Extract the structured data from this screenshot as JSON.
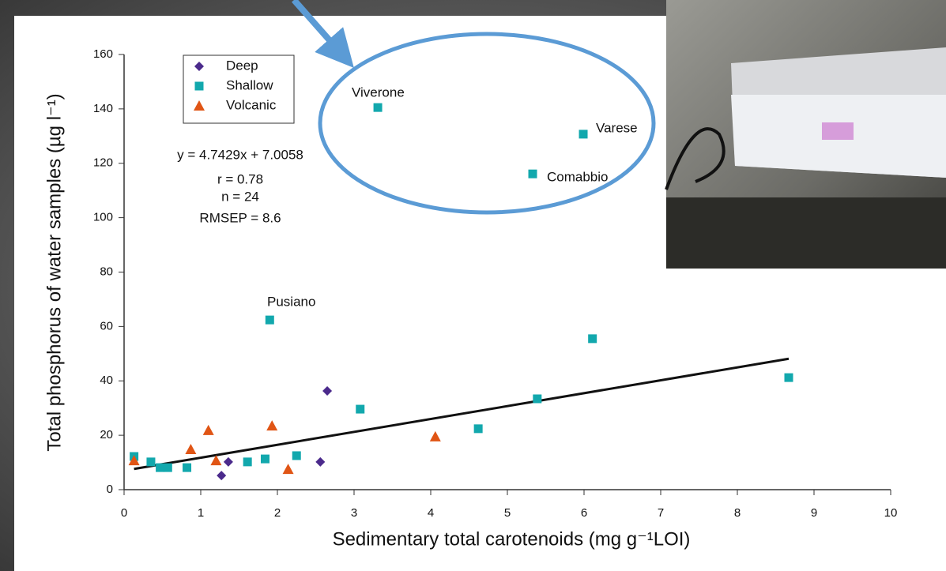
{
  "chart_data": {
    "type": "scatter",
    "x_label": "Sedimentary total carotenoids (mg g⁻¹LOI)",
    "y_label": "Total phosphorus of water samples (µg l⁻¹)",
    "xlim": [
      0,
      10
    ],
    "xticks": [
      0,
      1,
      2,
      3,
      4,
      5,
      6,
      7,
      8,
      9,
      10
    ],
    "ylim": [
      0,
      160
    ],
    "yticks": [
      0,
      20,
      40,
      60,
      80,
      100,
      120,
      140,
      160
    ],
    "legend": "upper left",
    "series": [
      {
        "name": "Deep",
        "color": "#4b2a8c",
        "marker": "diamond",
        "x": [
          1.27,
          1.36,
          2.56,
          2.65
        ],
        "values": [
          5.2,
          10.2,
          10.2,
          36.3
        ]
      },
      {
        "name": "Shallow",
        "color": "#12a8ad",
        "marker": "square",
        "x": [
          0.13,
          0.35,
          0.47,
          0.57,
          0.82,
          1.61,
          1.84,
          2.25,
          1.9,
          3.08,
          3.31,
          4.62,
          5.33,
          5.39,
          5.99,
          6.11,
          8.67
        ],
        "values": [
          12.2,
          10.2,
          8.1,
          8.1,
          8.1,
          10.2,
          11.3,
          12.5,
          62.4,
          29.6,
          140.5,
          22.4,
          116.1,
          33.4,
          130.7,
          55.5,
          41.2
        ]
      },
      {
        "name": "Volcanic",
        "color": "#e05515",
        "marker": "triangle",
        "x": [
          0.13,
          0.87,
          1.1,
          1.2,
          1.93,
          2.14,
          4.06
        ],
        "values": [
          10.7,
          14.8,
          21.8,
          10.7,
          23.5,
          7.5,
          19.5
        ]
      }
    ],
    "trendline": {
      "color": "#111111",
      "x": [
        0.13,
        8.67
      ],
      "values": [
        7.62,
        48.13
      ]
    },
    "stats": [
      "y = 4.7429x + 7.0058",
      "r = 0.78",
      "n = 24",
      "RMSEP = 8.6"
    ],
    "annotations": [
      "Viverone",
      "Varese",
      "Comabbio",
      "Pusiano"
    ]
  }
}
